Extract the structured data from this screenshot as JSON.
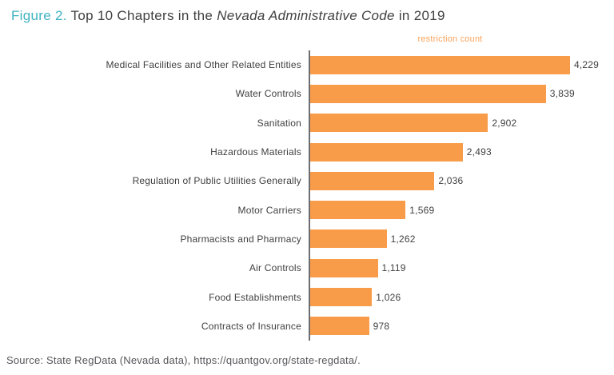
{
  "title": {
    "figure_label": "Figure 2.",
    "text_before_italic": " Top 10 Chapters in the ",
    "italic_text": "Nevada Administrative Code",
    "text_after_italic": " in 2019"
  },
  "chart_data": {
    "type": "bar",
    "orientation": "horizontal",
    "axis_title": "restriction count",
    "categories": [
      "Medical Facilities and Other Related Entities",
      "Water Controls",
      "Sanitation",
      "Hazardous Materials",
      "Regulation of Public Utilities Generally",
      "Motor Carriers",
      "Pharmacists and Pharmacy",
      "Air Controls",
      "Food Establishments",
      "Contracts of Insurance"
    ],
    "values": [
      4229,
      3839,
      2902,
      2493,
      2036,
      1569,
      1262,
      1119,
      1026,
      978
    ],
    "value_labels": [
      "4,229",
      "3,839",
      "2,902",
      "2,493",
      "2,036",
      "1,569",
      "1,262",
      "1,119",
      "1,026",
      "978"
    ],
    "xlim": [
      0,
      4229
    ],
    "grid": false,
    "legend": false,
    "bar_color": "#F99C49"
  },
  "source": "Source: State RegData (Nevada data), https://quantgov.org/state-regdata/.",
  "colors": {
    "figure_label_teal": "#3FB3C2",
    "title_text": "#414042",
    "bar_orange": "#F99C49",
    "axis_title_orange": "#F9A45C",
    "label_text": "#414042",
    "axis_line": "#6D6E71",
    "source_text": "#55565A"
  }
}
